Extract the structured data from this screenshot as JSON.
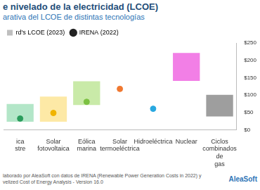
{
  "chart_data": {
    "type": "bar",
    "title": "e nivelado de la electricidad (LCOE)",
    "subtitle": "arativa del LCOE de distintas tecnologías",
    "categories": [
      "ica stre",
      "Solar fotovoltaica",
      "Eólica marina",
      "Solar termoeléctrica",
      "Hidroeléctrica",
      "Nuclear",
      "Ciclos combinados de gas"
    ],
    "series": [
      {
        "name": "rd's LCOE (2023)",
        "type": "bar",
        "marker": "square",
        "color": "#bfbfbf",
        "colors": [
          "#b3e6c8",
          "#fde9a6",
          "#c9eaa8",
          "#cccccc",
          "#cccccc",
          "#f27fe6",
          "#9e9e9e"
        ],
        "values": [
          [
            24,
            75
          ],
          [
            24,
            96
          ],
          [
            72,
            140
          ],
          null,
          null,
          [
            141,
            221
          ],
          [
            39,
            101
          ]
        ]
      },
      {
        "name": "IRENA (2022)",
        "type": "scatter",
        "marker": "circle",
        "color": "#222222",
        "colors": [
          "#2a9d5c",
          "#f0b400",
          "#7cc142",
          "#f07830",
          "#29a8e0",
          "#222222",
          "#222222"
        ],
        "values": [
          33,
          49,
          81,
          118,
          61,
          null,
          null
        ]
      }
    ],
    "ylim": [
      0,
      250
    ],
    "yticks": [
      {
        "value": 0,
        "label": "$0"
      },
      {
        "value": 50,
        "label": "$50"
      },
      {
        "value": 100,
        "label": "$100"
      },
      {
        "value": 150,
        "label": "$150"
      },
      {
        "value": 200,
        "label": "$200"
      },
      {
        "value": 250,
        "label": "$250"
      }
    ],
    "grid": false,
    "legend": "top-left",
    "source": [
      "laborado por AleaSoft con datos de IRENA (Renewable Power Generation Costs in 2022) y",
      "velized Cost of Energy Analysis - Version 16.0"
    ],
    "logo": "AleaSoft"
  }
}
